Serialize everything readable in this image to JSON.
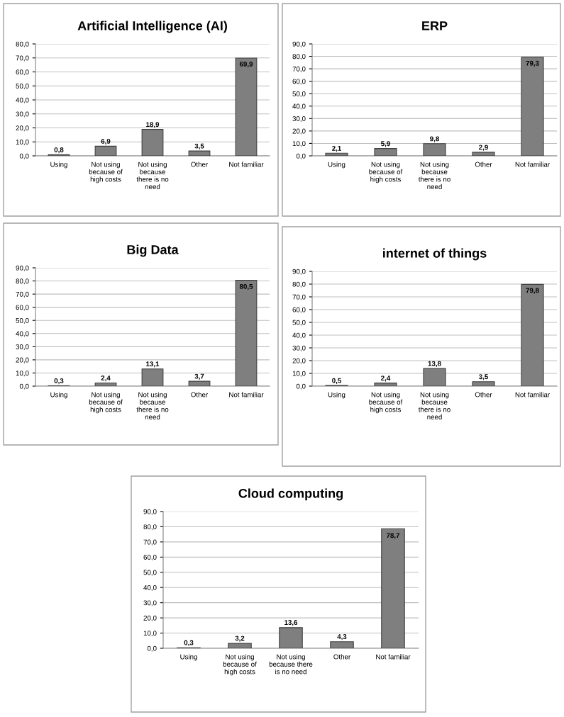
{
  "chart_data": [
    {
      "type": "bar",
      "title": "Artificial Intelligence (AI)",
      "categories": [
        "Using",
        "Not using\nbecause of\nhigh costs",
        "Not using\nbecause\nthere is no\nneed",
        "Other",
        "Not familiar"
      ],
      "values": [
        0.8,
        6.9,
        18.9,
        3.5,
        69.9
      ],
      "value_labels": [
        "0,8",
        "6,9",
        "18,9",
        "3,5",
        "69,9"
      ],
      "color": "#7f7f7f",
      "ylim": [
        0,
        80
      ],
      "yticks": [
        {
          "value": 0,
          "label": "0,0"
        },
        {
          "value": 10,
          "label": "10,0"
        },
        {
          "value": 20,
          "label": "20,0"
        },
        {
          "value": 30,
          "label": "30,0"
        },
        {
          "value": 40,
          "label": "40,0"
        },
        {
          "value": 50,
          "label": "50,0"
        },
        {
          "value": 60,
          "label": "60,0"
        },
        {
          "value": 70,
          "label": "70,0"
        },
        {
          "value": 80,
          "label": "80,0"
        }
      ],
      "grid": "y",
      "legend": false
    },
    {
      "type": "bar",
      "title": "ERP",
      "categories": [
        "Using",
        "Not using\nbecause of\nhigh costs",
        "Not using\nbecause\nthere is no\nneed",
        "Other",
        "Not familiar"
      ],
      "values": [
        2.1,
        5.9,
        9.8,
        2.9,
        79.3
      ],
      "value_labels": [
        "2,1",
        "5,9",
        "9,8",
        "2,9",
        "79,3"
      ],
      "color": "#7f7f7f",
      "ylim": [
        0,
        90
      ],
      "yticks": [
        {
          "value": 0,
          "label": "0,0"
        },
        {
          "value": 10,
          "label": "10,0"
        },
        {
          "value": 20,
          "label": "20,0"
        },
        {
          "value": 30,
          "label": "30,0"
        },
        {
          "value": 40,
          "label": "40,0"
        },
        {
          "value": 50,
          "label": "50,0"
        },
        {
          "value": 60,
          "label": "60,0"
        },
        {
          "value": 70,
          "label": "70,0"
        },
        {
          "value": 80,
          "label": "80,0"
        },
        {
          "value": 90,
          "label": "90,0"
        }
      ],
      "grid": "y",
      "legend": false
    },
    {
      "type": "bar",
      "title": "Big Data",
      "categories": [
        "Using",
        "Not using\nbecause of\nhigh costs",
        "Not using\nbecause\nthere is no\nneed",
        "Other",
        "Not familiar"
      ],
      "values": [
        0.3,
        2.4,
        13.1,
        3.7,
        80.5
      ],
      "value_labels": [
        "0,3",
        "2,4",
        "13,1",
        "3,7",
        "80,5"
      ],
      "color": "#7f7f7f",
      "ylim": [
        0,
        90
      ],
      "yticks": [
        {
          "value": 0,
          "label": "0,0"
        },
        {
          "value": 10,
          "label": "10,0"
        },
        {
          "value": 20,
          "label": "20,0"
        },
        {
          "value": 30,
          "label": "30,0"
        },
        {
          "value": 40,
          "label": "40,0"
        },
        {
          "value": 50,
          "label": "50,0"
        },
        {
          "value": 60,
          "label": "60,0"
        },
        {
          "value": 70,
          "label": "70,0"
        },
        {
          "value": 80,
          "label": "80,0"
        },
        {
          "value": 90,
          "label": "90,0"
        }
      ],
      "grid": "y",
      "legend": false
    },
    {
      "type": "bar",
      "title": "internet of things",
      "categories": [
        "Using",
        "Not using\nbecause of\nhigh costs",
        "Not using\nbecause\nthere is no\nneed",
        "Other",
        "Not familiar"
      ],
      "values": [
        0.5,
        2.4,
        13.8,
        3.5,
        79.8
      ],
      "value_labels": [
        "0,5",
        "2,4",
        "13,8",
        "3,5",
        "79,8"
      ],
      "color": "#7f7f7f",
      "ylim": [
        0,
        90
      ],
      "yticks": [
        {
          "value": 0,
          "label": "0,0"
        },
        {
          "value": 10,
          "label": "10,0"
        },
        {
          "value": 20,
          "label": "20,0"
        },
        {
          "value": 30,
          "label": "30,0"
        },
        {
          "value": 40,
          "label": "40,0"
        },
        {
          "value": 50,
          "label": "50,0"
        },
        {
          "value": 60,
          "label": "60,0"
        },
        {
          "value": 70,
          "label": "70,0"
        },
        {
          "value": 80,
          "label": "80,0"
        },
        {
          "value": 90,
          "label": "90,0"
        }
      ],
      "grid": "y",
      "legend": false
    },
    {
      "type": "bar",
      "title": "Cloud computing",
      "categories": [
        "Using",
        "Not using\nbecause of\nhigh costs",
        "Not using\nbecause there\nis no need",
        "Other",
        "Not familiar"
      ],
      "values": [
        0.3,
        3.2,
        13.6,
        4.3,
        78.7
      ],
      "value_labels": [
        "0,3",
        "3,2",
        "13,6",
        "4,3",
        "78,7"
      ],
      "color": "#7f7f7f",
      "ylim": [
        0,
        90
      ],
      "yticks": [
        {
          "value": 0,
          "label": "0,0"
        },
        {
          "value": 10,
          "label": "10,0"
        },
        {
          "value": 20,
          "label": "20,0"
        },
        {
          "value": 30,
          "label": "30,0"
        },
        {
          "value": 40,
          "label": "40,0"
        },
        {
          "value": 50,
          "label": "50,0"
        },
        {
          "value": 60,
          "label": "60,0"
        },
        {
          "value": 70,
          "label": "70,0"
        },
        {
          "value": 80,
          "label": "80,0"
        },
        {
          "value": 90,
          "label": "90,0"
        }
      ],
      "grid": "y",
      "legend": false
    }
  ]
}
